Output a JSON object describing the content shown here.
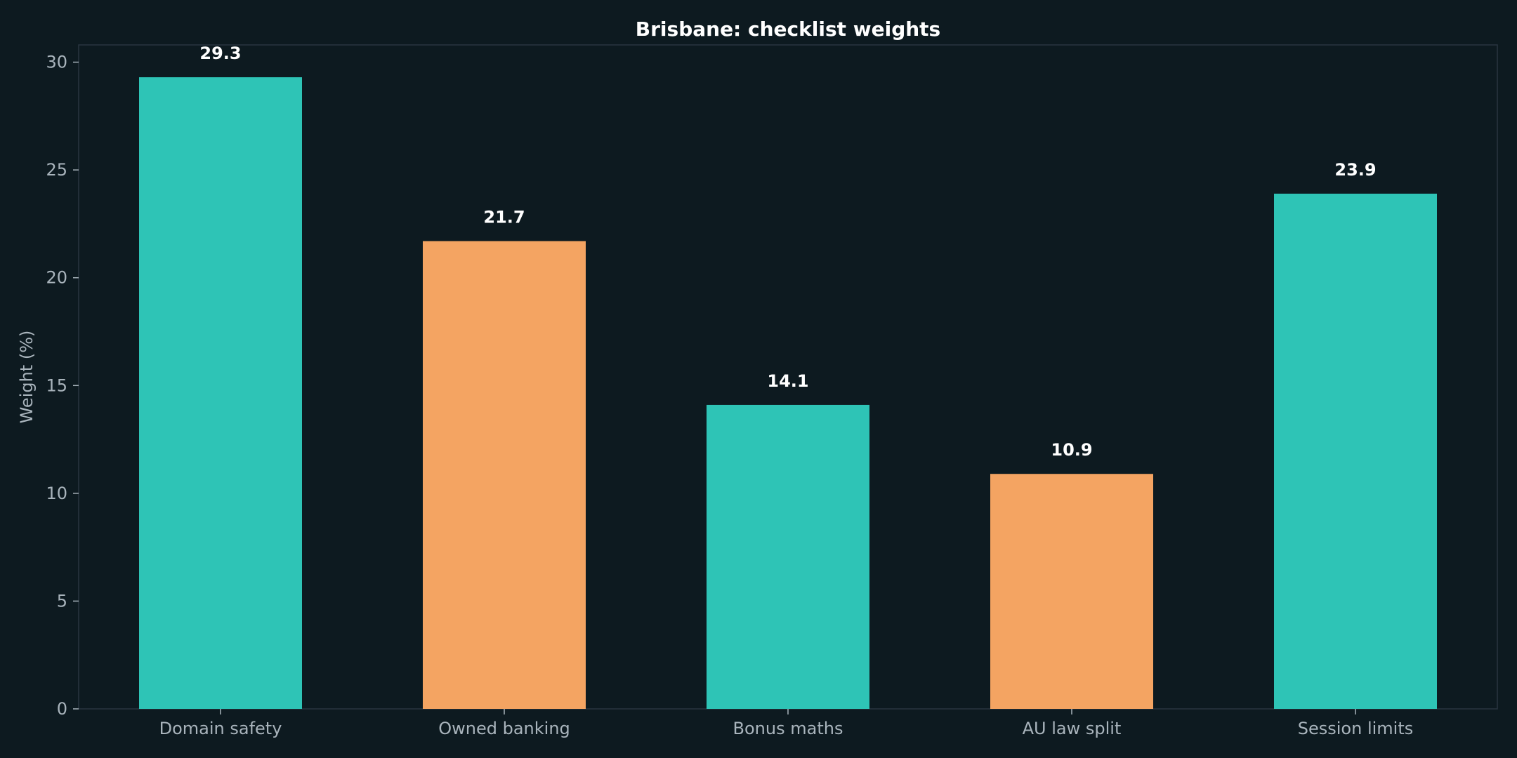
{
  "chart_data": {
    "type": "bar",
    "title": "Brisbane: checklist weights",
    "xlabel": "",
    "ylabel": "Weight (%)",
    "categories": [
      "Domain safety",
      "Owned banking",
      "Bonus maths",
      "AU law split",
      "Session limits"
    ],
    "values": [
      29.3,
      21.7,
      14.1,
      10.9,
      23.9
    ],
    "value_labels": [
      "29.3",
      "21.7",
      "14.1",
      "10.9",
      "23.9"
    ],
    "bar_colors": [
      "#2ec4b6",
      "#f4a462",
      "#2ec4b6",
      "#f4a462",
      "#2ec4b6"
    ],
    "ylim": [
      0,
      30.8
    ],
    "yticks": [
      0,
      5,
      10,
      15,
      20,
      25,
      30
    ],
    "grid": false,
    "legend": "none"
  },
  "colors": {
    "background": "#0d1a20",
    "plot_border": "#2a3540",
    "tick_text": "#a9b4bc",
    "title_text": "#ffffff",
    "value_label_text": "#ffffff"
  }
}
